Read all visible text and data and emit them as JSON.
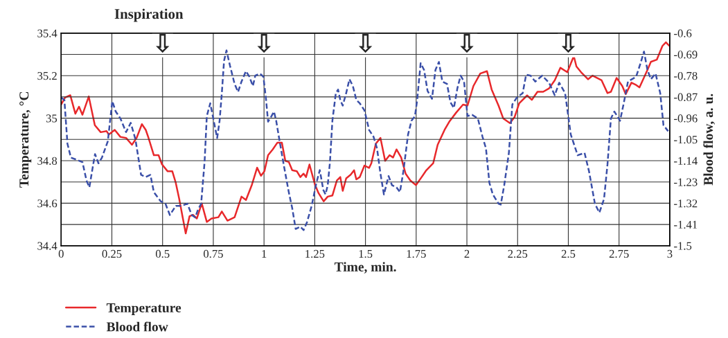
{
  "chart_data": {
    "type": "line",
    "title": "Inspiration",
    "xlabel": "Time, min.",
    "ylabel": "Temperature, °C",
    "y2label": "Blood flow, a. u.",
    "xlim": [
      0,
      3
    ],
    "xticks": [
      0,
      0.25,
      0.5,
      0.75,
      1,
      1.25,
      1.5,
      1.75,
      2,
      2.25,
      2.5,
      2.75,
      3
    ],
    "ylim": [
      34.4,
      35.4
    ],
    "yticks": [
      34.4,
      34.6,
      34.8,
      35,
      35.2,
      35.4
    ],
    "y2lim": [
      -1.5,
      -0.6
    ],
    "y2ticks": [
      -1.5,
      -1.41,
      -1.32,
      -1.23,
      -1.14,
      -1.05,
      -0.96,
      -0.87,
      -0.78,
      -0.69,
      -0.6
    ],
    "grid": true,
    "legend": "bottom left",
    "annotations": [
      "⇩",
      "⇩",
      "⇩",
      "⇩",
      "⇩"
    ],
    "series": [
      {
        "name": "Temperature",
        "color": "#e8282b",
        "line_style": "solid",
        "x": [
          0,
          0.019,
          0.045,
          0.07,
          0.088,
          0.105,
          0.136,
          0.166,
          0.195,
          0.224,
          0.235,
          0.264,
          0.292,
          0.32,
          0.349,
          0.372,
          0.398,
          0.417,
          0.429,
          0.457,
          0.48,
          0.497,
          0.525,
          0.548,
          0.565,
          0.582,
          0.599,
          0.614,
          0.633,
          0.65,
          0.669,
          0.693,
          0.718,
          0.741,
          0.775,
          0.792,
          0.82,
          0.855,
          0.889,
          0.911,
          0.94,
          0.966,
          0.985,
          1.002,
          1.02,
          1.043,
          1.066,
          1.088,
          1.105,
          1.122,
          1.139,
          1.162,
          1.179,
          1.195,
          1.207,
          1.224,
          1.241,
          1.252,
          1.269,
          1.294,
          1.314,
          1.337,
          1.359,
          1.376,
          1.388,
          1.405,
          1.427,
          1.444,
          1.455,
          1.472,
          1.495,
          1.518,
          1.529,
          1.551,
          1.574,
          1.597,
          1.619,
          1.636,
          1.653,
          1.676,
          1.698,
          1.721,
          1.749,
          1.777,
          1.8,
          1.834,
          1.856,
          1.89,
          1.913,
          1.947,
          1.981,
          2.003,
          2.032,
          2.066,
          2.099,
          2.122,
          2.156,
          2.179,
          2.212,
          2.235,
          2.258,
          2.297,
          2.32,
          2.348,
          2.376,
          2.405,
          2.433,
          2.461,
          2.495,
          2.527,
          2.54,
          2.563,
          2.597,
          2.619,
          2.664,
          2.693,
          2.71,
          2.738,
          2.766,
          2.783,
          2.811,
          2.834,
          2.851,
          2.89,
          2.907,
          2.936,
          2.964,
          2.981,
          2.998
        ],
        "values": [
          35.064,
          35.097,
          35.108,
          35.021,
          35.054,
          35.016,
          35.102,
          34.967,
          34.934,
          34.939,
          34.923,
          34.945,
          34.912,
          34.907,
          34.875,
          34.907,
          34.972,
          34.945,
          34.912,
          34.826,
          34.826,
          34.783,
          34.75,
          34.75,
          34.696,
          34.62,
          34.534,
          34.458,
          34.539,
          34.545,
          34.528,
          34.599,
          34.512,
          34.528,
          34.534,
          34.561,
          34.518,
          34.534,
          34.631,
          34.615,
          34.686,
          34.767,
          34.729,
          34.75,
          34.826,
          34.853,
          34.885,
          34.885,
          34.799,
          34.794,
          34.755,
          34.75,
          34.723,
          34.739,
          34.723,
          34.782,
          34.723,
          34.685,
          34.647,
          34.609,
          34.631,
          34.636,
          34.707,
          34.723,
          34.658,
          34.717,
          34.734,
          34.755,
          34.712,
          34.723,
          34.777,
          34.766,
          34.788,
          34.88,
          34.907,
          34.799,
          34.826,
          34.815,
          34.853,
          34.815,
          34.739,
          34.707,
          34.685,
          34.723,
          34.755,
          34.788,
          34.875,
          34.945,
          34.983,
          35.026,
          35.064,
          35.059,
          35.151,
          35.21,
          35.221,
          35.135,
          35.059,
          34.999,
          34.977,
          35.005,
          35.07,
          35.107,
          35.086,
          35.124,
          35.124,
          35.14,
          35.178,
          35.237,
          35.216,
          35.292,
          35.243,
          35.216,
          35.183,
          35.2,
          35.178,
          35.118,
          35.124,
          35.189,
          35.151,
          35.113,
          35.167,
          35.156,
          35.145,
          35.227,
          35.265,
          35.275,
          35.34,
          35.357,
          35.34
        ]
      },
      {
        "name": "Blood flow",
        "color": "#3a4fa8",
        "line_style": "dashed",
        "axis": "y2",
        "x": [
          0,
          0.016,
          0.031,
          0.048,
          0.076,
          0.105,
          0.125,
          0.139,
          0.156,
          0.167,
          0.184,
          0.201,
          0.23,
          0.252,
          0.269,
          0.292,
          0.32,
          0.343,
          0.366,
          0.394,
          0.417,
          0.44,
          0.457,
          0.491,
          0.514,
          0.536,
          0.565,
          0.593,
          0.622,
          0.644,
          0.661,
          0.673,
          0.69,
          0.707,
          0.718,
          0.735,
          0.752,
          0.769,
          0.781,
          0.792,
          0.803,
          0.815,
          0.832,
          0.855,
          0.872,
          0.889,
          0.911,
          0.928,
          0.945,
          0.957,
          0.98,
          0.997,
          1.009,
          1.02,
          1.037,
          1.049,
          1.06,
          1.077,
          1.099,
          1.122,
          1.139,
          1.156,
          1.179,
          1.195,
          1.212,
          1.235,
          1.258,
          1.275,
          1.292,
          1.303,
          1.314,
          1.325,
          1.337,
          1.354,
          1.365,
          1.376,
          1.388,
          1.405,
          1.421,
          1.438,
          1.455,
          1.472,
          1.495,
          1.518,
          1.54,
          1.557,
          1.574,
          1.591,
          1.614,
          1.631,
          1.653,
          1.67,
          1.687,
          1.71,
          1.727,
          1.744,
          1.755,
          1.772,
          1.789,
          1.806,
          1.828,
          1.845,
          1.862,
          1.879,
          1.902,
          1.919,
          1.936,
          1.953,
          1.969,
          1.986,
          2.003,
          2.026,
          2.054,
          2.077,
          2.094,
          2.111,
          2.128,
          2.156,
          2.167,
          2.184,
          2.207,
          2.224,
          2.246,
          2.275,
          2.292,
          2.314,
          2.337,
          2.371,
          2.405,
          2.433,
          2.455,
          2.484,
          2.495,
          2.512,
          2.546,
          2.58,
          2.602,
          2.631,
          2.653,
          2.676,
          2.693,
          2.71,
          2.727,
          2.755,
          2.772,
          2.794,
          2.834,
          2.856,
          2.873,
          2.89,
          2.907,
          2.93,
          2.953,
          2.969,
          2.992
        ],
        "values": [
          -0.873,
          -0.883,
          -1.068,
          -1.127,
          -1.136,
          -1.146,
          -1.224,
          -1.253,
          -1.166,
          -1.112,
          -1.151,
          -1.127,
          -1.058,
          -0.888,
          -0.932,
          -0.961,
          -1.019,
          -0.98,
          -1.049,
          -1.2,
          -1.209,
          -1.2,
          -1.273,
          -1.312,
          -1.322,
          -1.37,
          -1.331,
          -1.331,
          -1.322,
          -1.37,
          -1.38,
          -1.351,
          -1.322,
          -1.146,
          -0.951,
          -0.897,
          -0.971,
          -1.044,
          -0.971,
          -0.854,
          -0.717,
          -0.673,
          -0.737,
          -0.815,
          -0.849,
          -0.805,
          -0.761,
          -0.785,
          -0.824,
          -0.78,
          -0.771,
          -0.785,
          -0.873,
          -0.975,
          -0.951,
          -0.932,
          -0.971,
          -1.058,
          -1.166,
          -1.273,
          -1.341,
          -1.429,
          -1.419,
          -1.434,
          -1.4,
          -1.331,
          -1.234,
          -1.18,
          -1.263,
          -1.283,
          -1.244,
          -1.146,
          -0.971,
          -0.854,
          -0.839,
          -0.883,
          -0.907,
          -0.854,
          -0.795,
          -0.824,
          -0.883,
          -0.897,
          -0.927,
          -1.01,
          -1.039,
          -1.088,
          -1.195,
          -1.283,
          -1.205,
          -1.244,
          -1.253,
          -1.273,
          -1.185,
          -1.029,
          -0.971,
          -0.951,
          -0.883,
          -0.727,
          -0.756,
          -0.844,
          -0.878,
          -0.756,
          -0.722,
          -0.805,
          -0.815,
          -0.893,
          -0.917,
          -0.834,
          -0.78,
          -0.805,
          -0.951,
          -0.946,
          -0.961,
          -1.039,
          -1.088,
          -1.234,
          -1.283,
          -1.322,
          -1.326,
          -1.244,
          -1.107,
          -0.902,
          -0.873,
          -0.854,
          -0.776,
          -0.78,
          -0.805,
          -0.78,
          -0.81,
          -0.863,
          -0.81,
          -0.854,
          -0.922,
          -1.029,
          -1.117,
          -1.107,
          -1.185,
          -1.322,
          -1.36,
          -1.302,
          -1.156,
          -0.961,
          -0.932,
          -0.971,
          -0.902,
          -0.805,
          -0.785,
          -0.727,
          -0.678,
          -0.756,
          -0.795,
          -0.771,
          -0.854,
          -0.99,
          -1.015
        ]
      }
    ]
  }
}
